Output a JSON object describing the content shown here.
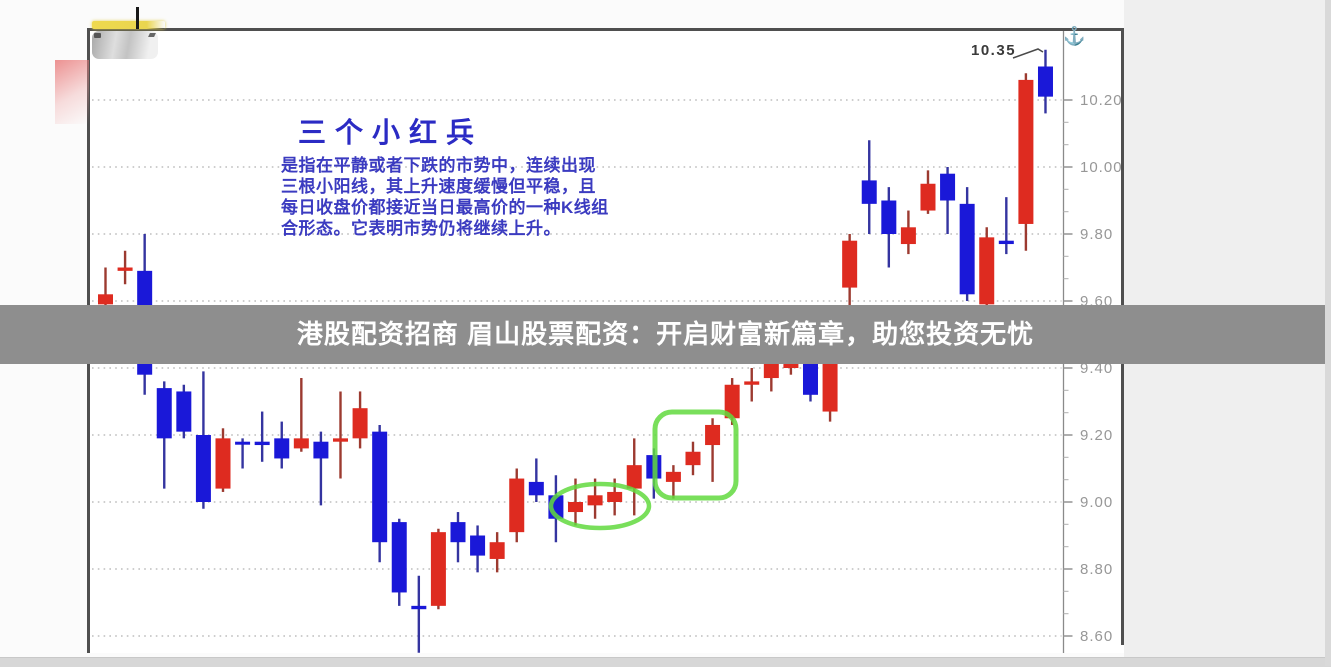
{
  "banner": {
    "text": "港股配资招商 眉山股票配资：开启财富新篇章，助您投资无忧",
    "bg": "#8e8e8e",
    "text_color": "#ffffff"
  },
  "note": {
    "title": "三个小红兵",
    "lines": [
      "是指在平静或者下跌的市势中，连续出现",
      "三根小阳线，其上升速度缓慢但平稳，且",
      "每日收盘价都接近当日最高价的一种K线组",
      "合形态。它表明市势仍将继续上升。"
    ],
    "title_color": "#2b2bc4",
    "text_color": "#3b3bc0"
  },
  "peak_label": {
    "text": "10.35"
  },
  "anchor_icon": "⚓",
  "chart_data": {
    "type": "candlestick",
    "pattern_name": "三个小红兵",
    "y_axis_side": "right",
    "ylim": [
      8.55,
      10.4
    ],
    "grid": true,
    "up_color": "#de2b20",
    "down_color": "#1a18d8",
    "up_wick_color": "#9c3a30",
    "down_wick_color": "#3434a0",
    "highlight_color": "#62d93e",
    "peak_price": "10.35",
    "y_ticks": [
      {
        "label": "10.20",
        "value": 10.2
      },
      {
        "label": "10.00",
        "value": 10.0
      },
      {
        "label": "9.80",
        "value": 9.8
      },
      {
        "label": "9.60",
        "value": 9.6
      },
      {
        "label": "9.40",
        "value": 9.4
      },
      {
        "label": "9.20",
        "value": 9.2
      },
      {
        "label": "9.00",
        "value": 9.0
      },
      {
        "label": "8.80",
        "value": 8.8
      },
      {
        "label": "8.60",
        "value": 8.6
      }
    ],
    "candles": [
      {
        "o": 9.59,
        "h": 9.7,
        "l": 9.58,
        "c": 9.62,
        "dir": "up"
      },
      {
        "o": 9.69,
        "h": 9.75,
        "l": 9.65,
        "c": 9.7,
        "dir": "up"
      },
      {
        "o": 9.69,
        "h": 9.8,
        "l": 9.32,
        "c": 9.38,
        "dir": "down"
      },
      {
        "o": 9.34,
        "h": 9.36,
        "l": 9.04,
        "c": 9.19,
        "dir": "down"
      },
      {
        "o": 9.33,
        "h": 9.35,
        "l": 9.19,
        "c": 9.21,
        "dir": "down"
      },
      {
        "o": 9.2,
        "h": 9.39,
        "l": 8.98,
        "c": 9.0,
        "dir": "down"
      },
      {
        "o": 9.04,
        "h": 9.22,
        "l": 9.03,
        "c": 9.19,
        "dir": "up"
      },
      {
        "o": 9.18,
        "h": 9.19,
        "l": 9.1,
        "c": 9.18,
        "dir": "down"
      },
      {
        "o": 9.18,
        "h": 9.27,
        "l": 9.12,
        "c": 9.17,
        "dir": "down"
      },
      {
        "o": 9.19,
        "h": 9.24,
        "l": 9.1,
        "c": 9.13,
        "dir": "down"
      },
      {
        "o": 9.16,
        "h": 9.37,
        "l": 9.15,
        "c": 9.19,
        "dir": "up"
      },
      {
        "o": 9.18,
        "h": 9.21,
        "l": 8.99,
        "c": 9.13,
        "dir": "down"
      },
      {
        "o": 9.18,
        "h": 9.33,
        "l": 9.07,
        "c": 9.19,
        "dir": "up"
      },
      {
        "o": 9.19,
        "h": 9.33,
        "l": 9.16,
        "c": 9.28,
        "dir": "up"
      },
      {
        "o": 9.21,
        "h": 9.23,
        "l": 8.82,
        "c": 8.88,
        "dir": "down"
      },
      {
        "o": 8.94,
        "h": 8.95,
        "l": 8.69,
        "c": 8.73,
        "dir": "down"
      },
      {
        "o": 8.69,
        "h": 8.78,
        "l": 8.55,
        "c": 8.68,
        "dir": "down"
      },
      {
        "o": 8.69,
        "h": 8.92,
        "l": 8.68,
        "c": 8.91,
        "dir": "up"
      },
      {
        "o": 8.94,
        "h": 8.97,
        "l": 8.82,
        "c": 8.88,
        "dir": "down"
      },
      {
        "o": 8.9,
        "h": 8.93,
        "l": 8.79,
        "c": 8.84,
        "dir": "down"
      },
      {
        "o": 8.83,
        "h": 8.91,
        "l": 8.79,
        "c": 8.88,
        "dir": "up"
      },
      {
        "o": 8.91,
        "h": 9.1,
        "l": 8.88,
        "c": 9.07,
        "dir": "up"
      },
      {
        "o": 9.06,
        "h": 9.13,
        "l": 9.0,
        "c": 9.02,
        "dir": "down"
      },
      {
        "o": 9.02,
        "h": 9.08,
        "l": 8.88,
        "c": 8.95,
        "dir": "down"
      },
      {
        "o": 8.97,
        "h": 9.07,
        "l": 8.93,
        "c": 9.0,
        "dir": "up"
      },
      {
        "o": 8.99,
        "h": 9.07,
        "l": 8.95,
        "c": 9.02,
        "dir": "up"
      },
      {
        "o": 9.0,
        "h": 9.07,
        "l": 8.96,
        "c": 9.03,
        "dir": "up"
      },
      {
        "o": 9.04,
        "h": 9.19,
        "l": 8.96,
        "c": 9.11,
        "dir": "up"
      },
      {
        "o": 9.14,
        "h": 9.16,
        "l": 9.01,
        "c": 9.07,
        "dir": "down"
      },
      {
        "o": 9.06,
        "h": 9.11,
        "l": 9.01,
        "c": 9.09,
        "dir": "up"
      },
      {
        "o": 9.11,
        "h": 9.18,
        "l": 9.08,
        "c": 9.15,
        "dir": "up"
      },
      {
        "o": 9.17,
        "h": 9.25,
        "l": 9.06,
        "c": 9.23,
        "dir": "up"
      },
      {
        "o": 9.25,
        "h": 9.37,
        "l": 9.23,
        "c": 9.35,
        "dir": "up"
      },
      {
        "o": 9.35,
        "h": 9.4,
        "l": 9.3,
        "c": 9.36,
        "dir": "up"
      },
      {
        "o": 9.37,
        "h": 9.46,
        "l": 9.33,
        "c": 9.44,
        "dir": "up"
      },
      {
        "o": 9.4,
        "h": 9.52,
        "l": 9.38,
        "c": 9.5,
        "dir": "up"
      },
      {
        "o": 9.45,
        "h": 9.47,
        "l": 9.3,
        "c": 9.32,
        "dir": "down"
      },
      {
        "o": 9.27,
        "h": 9.56,
        "l": 9.24,
        "c": 9.54,
        "dir": "up"
      },
      {
        "o": 9.64,
        "h": 9.8,
        "l": 9.57,
        "c": 9.78,
        "dir": "up"
      },
      {
        "o": 9.96,
        "h": 10.08,
        "l": 9.8,
        "c": 9.89,
        "dir": "down"
      },
      {
        "o": 9.9,
        "h": 9.94,
        "l": 9.7,
        "c": 9.8,
        "dir": "down"
      },
      {
        "o": 9.77,
        "h": 9.87,
        "l": 9.74,
        "c": 9.82,
        "dir": "up"
      },
      {
        "o": 9.87,
        "h": 9.99,
        "l": 9.86,
        "c": 9.95,
        "dir": "up"
      },
      {
        "o": 9.98,
        "h": 10.0,
        "l": 9.8,
        "c": 9.9,
        "dir": "down"
      },
      {
        "o": 9.89,
        "h": 9.94,
        "l": 9.6,
        "c": 9.62,
        "dir": "down"
      },
      {
        "o": 9.59,
        "h": 9.82,
        "l": 9.55,
        "c": 9.79,
        "dir": "up"
      },
      {
        "o": 9.78,
        "h": 9.91,
        "l": 9.74,
        "c": 9.77,
        "dir": "down"
      },
      {
        "o": 9.83,
        "h": 10.28,
        "l": 9.75,
        "c": 10.26,
        "dir": "up"
      },
      {
        "o": 10.3,
        "h": 10.35,
        "l": 10.16,
        "c": 10.21,
        "dir": "down"
      }
    ],
    "highlights": {
      "ellipse": {
        "cx": 600,
        "cy": 506,
        "rx": 49,
        "ry": 22
      },
      "rect": {
        "x": 655,
        "y": 412,
        "w": 81,
        "h": 86,
        "r": 17
      }
    }
  }
}
